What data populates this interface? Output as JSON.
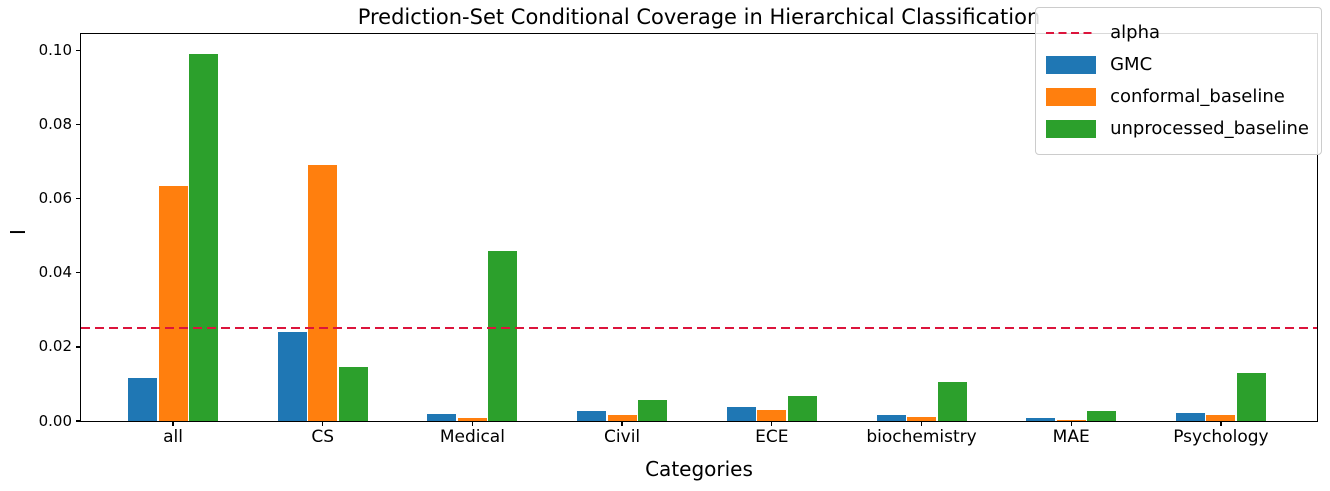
{
  "chart_data": {
    "type": "bar",
    "title": "Prediction-Set Conditional Coverage in Hierarchical Classification",
    "xlabel": "Categories",
    "ylabel": "I",
    "categories": [
      "all",
      "CS",
      "Medical",
      "Civil",
      "ECE",
      "biochemistry",
      "MAE",
      "Psychology"
    ],
    "series": [
      {
        "name": "GMC",
        "color": "#1f77b4",
        "values": [
          0.0115,
          0.024,
          0.002,
          0.0028,
          0.0037,
          0.0015,
          0.0008,
          0.0022
        ]
      },
      {
        "name": "conformal_baseline",
        "color": "#ff7f0e",
        "values": [
          0.0635,
          0.069,
          0.0008,
          0.0015,
          0.003,
          0.001,
          0.0003,
          0.0015
        ]
      },
      {
        "name": "unprocessed_baseline",
        "color": "#2ca02c",
        "values": [
          0.099,
          0.0145,
          0.046,
          0.0057,
          0.0068,
          0.0105,
          0.0028,
          0.013
        ]
      }
    ],
    "reference_line": {
      "name": "alpha",
      "value": 0.025,
      "color": "#dc143c",
      "style": "dashed"
    },
    "ylim": [
      0,
      0.105
    ],
    "yticks": [
      0.0,
      0.02,
      0.04,
      0.06,
      0.08,
      0.1
    ],
    "ytick_labels": [
      "0.00",
      "0.02",
      "0.04",
      "0.06",
      "0.08",
      "0.10"
    ],
    "grid": false,
    "legend": {
      "position": "upper right",
      "entries": [
        "alpha",
        "GMC",
        "conformal_baseline",
        "unprocessed_baseline"
      ]
    }
  }
}
